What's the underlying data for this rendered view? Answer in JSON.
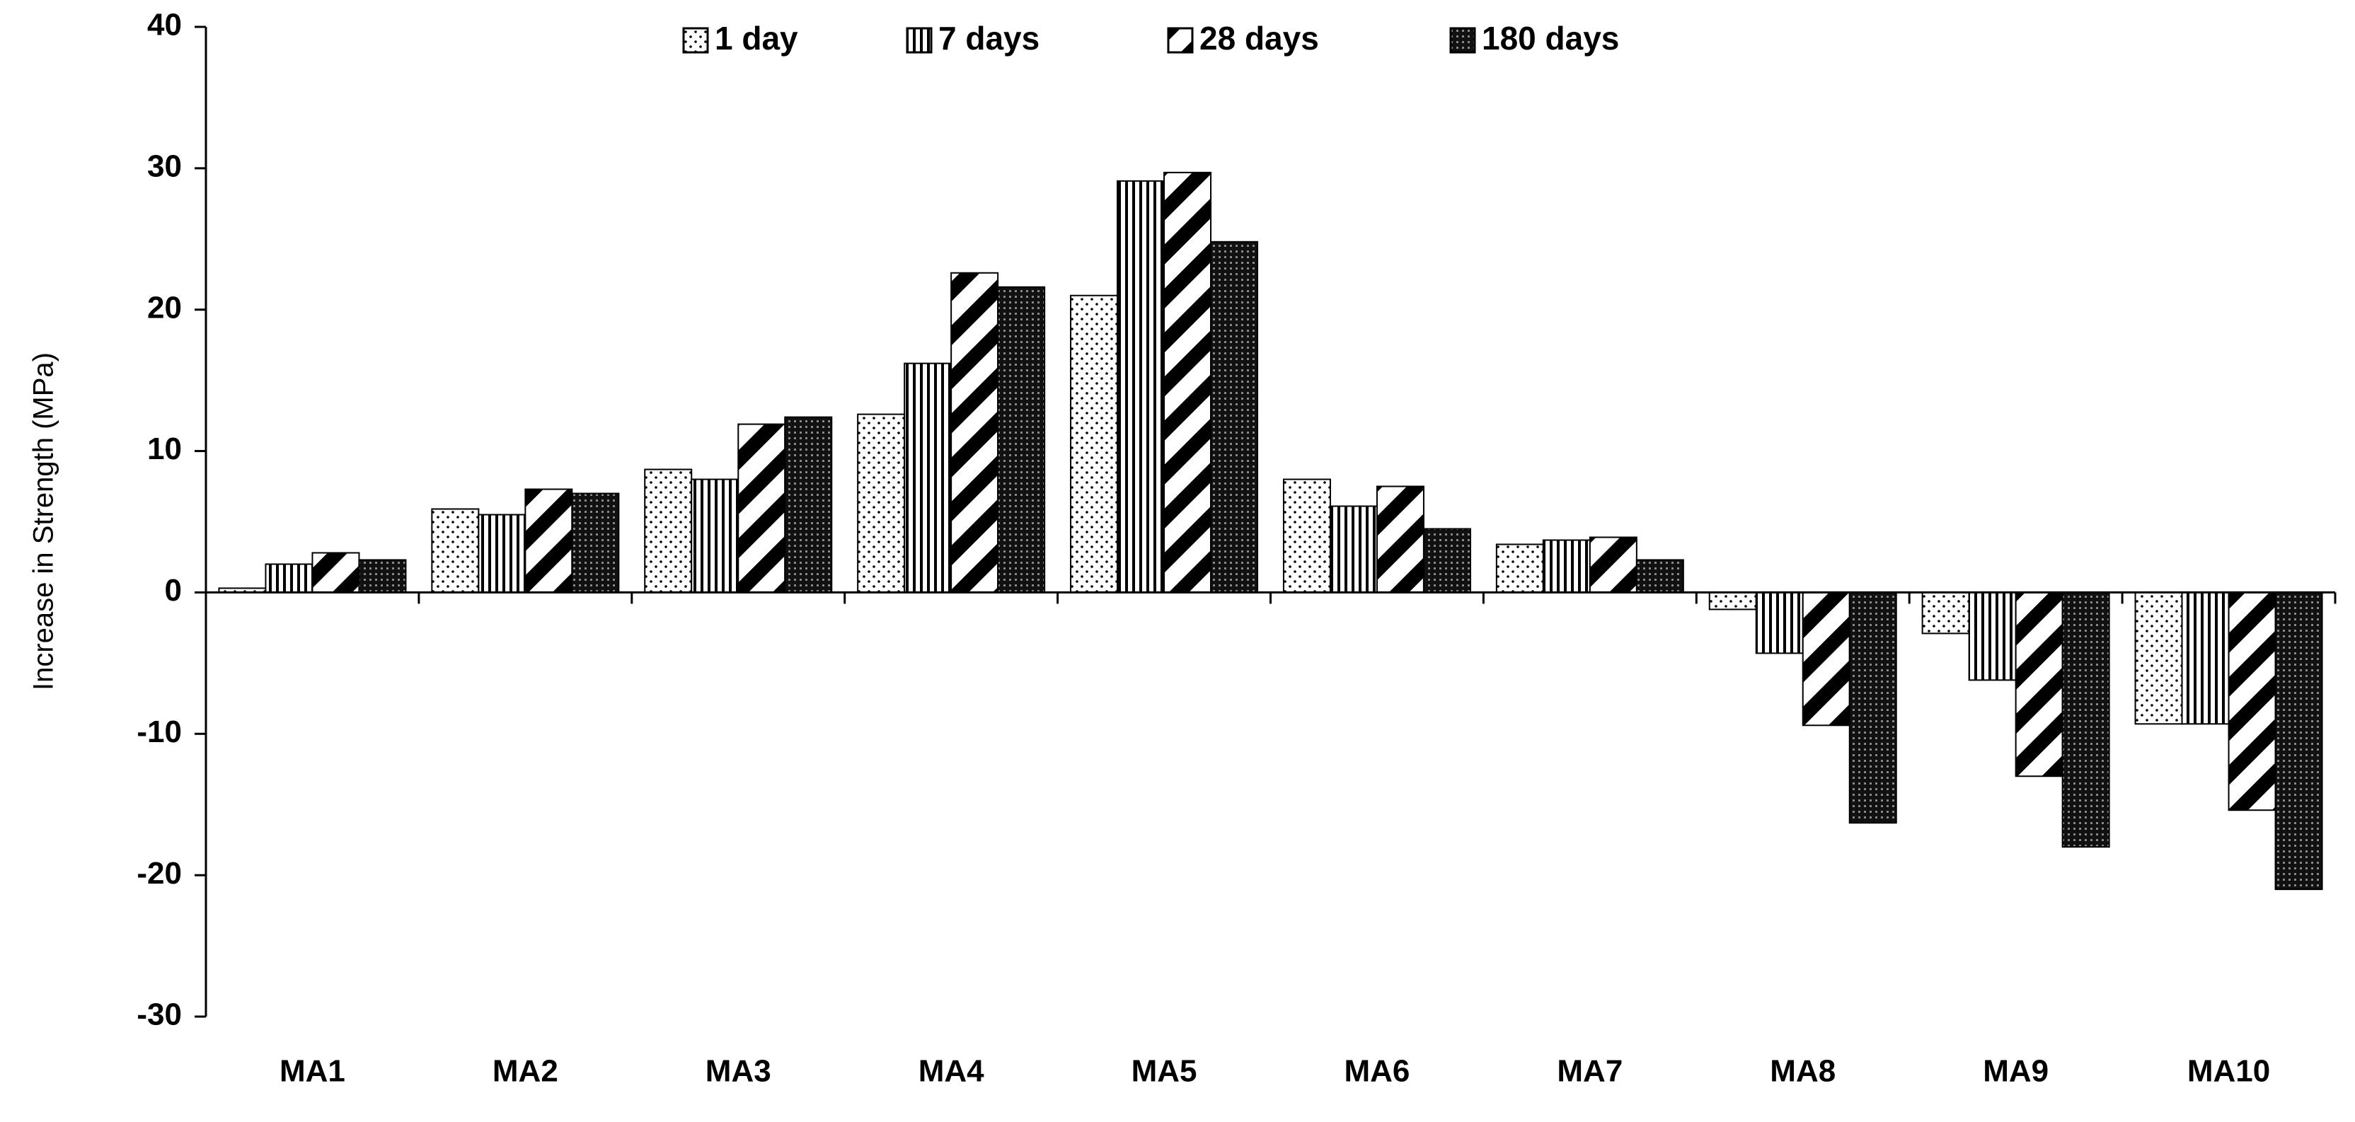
{
  "chart_data": {
    "type": "bar",
    "y_label": "Increase in Strength (MPa)",
    "categories": [
      "MA1",
      "MA2",
      "MA3",
      "MA4",
      "MA5",
      "MA6",
      "MA7",
      "MA8",
      "MA9",
      "MA10"
    ],
    "series": [
      {
        "name": "1 day",
        "values": [
          0.3,
          5.9,
          8.7,
          12.6,
          21.0,
          8.0,
          3.4,
          -1.2,
          -2.9,
          -9.3
        ]
      },
      {
        "name": "7 days",
        "values": [
          2.0,
          5.5,
          8.0,
          16.2,
          29.1,
          6.1,
          3.7,
          -4.3,
          -6.2,
          -9.3
        ]
      },
      {
        "name": "28 days",
        "values": [
          2.8,
          7.3,
          11.9,
          22.6,
          29.7,
          7.5,
          3.9,
          -9.4,
          -13.0,
          -15.4
        ]
      },
      {
        "name": "180 days",
        "values": [
          2.3,
          7.0,
          12.4,
          21.6,
          24.8,
          4.5,
          2.3,
          -16.3,
          -18.0,
          -21.0
        ]
      }
    ],
    "ylim": [
      -30,
      40
    ],
    "yticks": [
      -30,
      -20,
      -10,
      0,
      10,
      20,
      30,
      40
    ],
    "legend": "top"
  }
}
